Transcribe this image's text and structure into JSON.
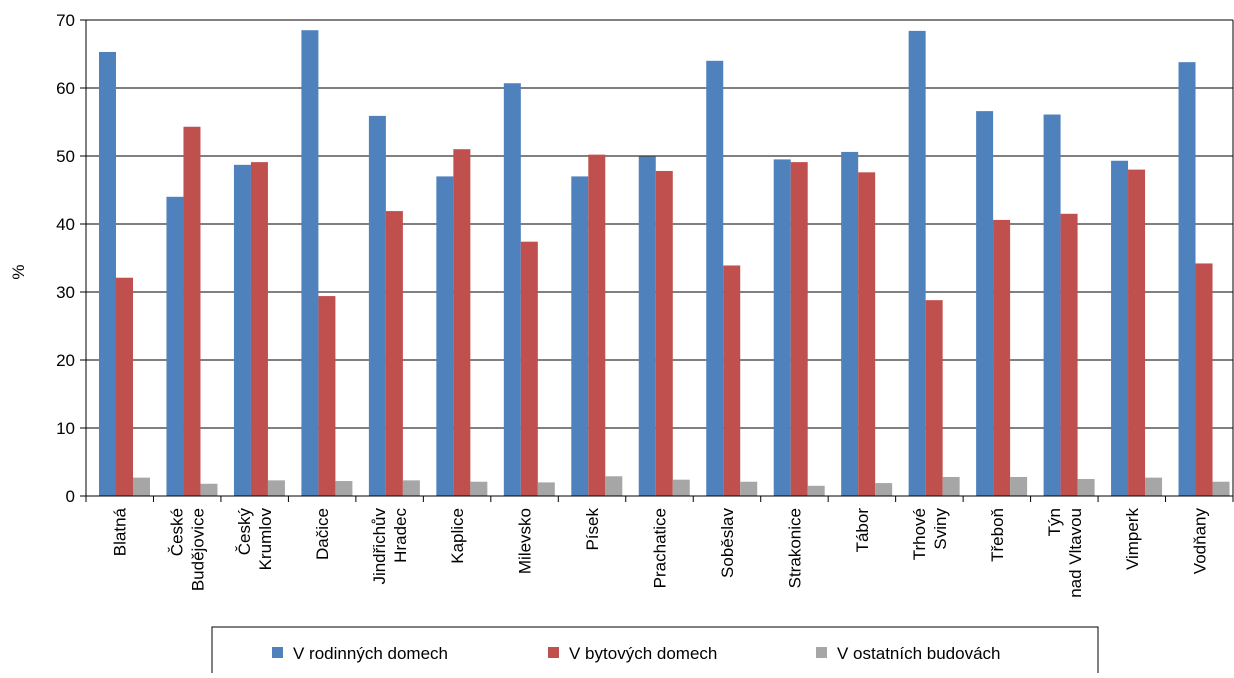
{
  "chart_data": {
    "type": "bar",
    "title": "",
    "xlabel": "",
    "ylabel": "%",
    "ylim": [
      0,
      70
    ],
    "yticks": [
      0,
      10,
      20,
      30,
      40,
      50,
      60,
      70
    ],
    "grid": true,
    "legend_position": "bottom",
    "categories": [
      [
        "Blatná"
      ],
      [
        "České",
        "Budějovice"
      ],
      [
        "Český",
        "Krumlov"
      ],
      [
        "Dačice"
      ],
      [
        "Jindřichův",
        "Hradec"
      ],
      [
        "Kaplice"
      ],
      [
        "Milevsko"
      ],
      [
        "Písek"
      ],
      [
        "Prachatice"
      ],
      [
        "Soběslav"
      ],
      [
        "Strakonice"
      ],
      [
        "Tábor"
      ],
      [
        "Trhové",
        "Sviny"
      ],
      [
        "Třeboň"
      ],
      [
        "Týn",
        "nad Vltavou"
      ],
      [
        "Vimperk"
      ],
      [
        "Vodňany"
      ]
    ],
    "series": [
      {
        "name": "V rodinných domech",
        "color": "#4F81BD",
        "values": [
          65.3,
          44.0,
          48.7,
          68.5,
          55.9,
          47.0,
          60.7,
          47.0,
          49.9,
          64.0,
          49.5,
          50.6,
          68.4,
          56.6,
          56.1,
          49.3,
          63.8
        ]
      },
      {
        "name": "V bytových domech",
        "color": "#C0504D",
        "values": [
          32.1,
          54.3,
          49.1,
          29.4,
          41.9,
          51.0,
          37.4,
          50.2,
          47.8,
          33.9,
          49.1,
          47.6,
          28.8,
          40.6,
          41.5,
          48.0,
          34.2
        ]
      },
      {
        "name": "V ostatních budovách",
        "color": "#A6A6A6",
        "values": [
          2.7,
          1.8,
          2.3,
          2.2,
          2.3,
          2.1,
          2.0,
          2.9,
          2.4,
          2.1,
          1.5,
          1.9,
          2.8,
          2.8,
          2.5,
          2.7,
          2.1
        ]
      }
    ]
  }
}
